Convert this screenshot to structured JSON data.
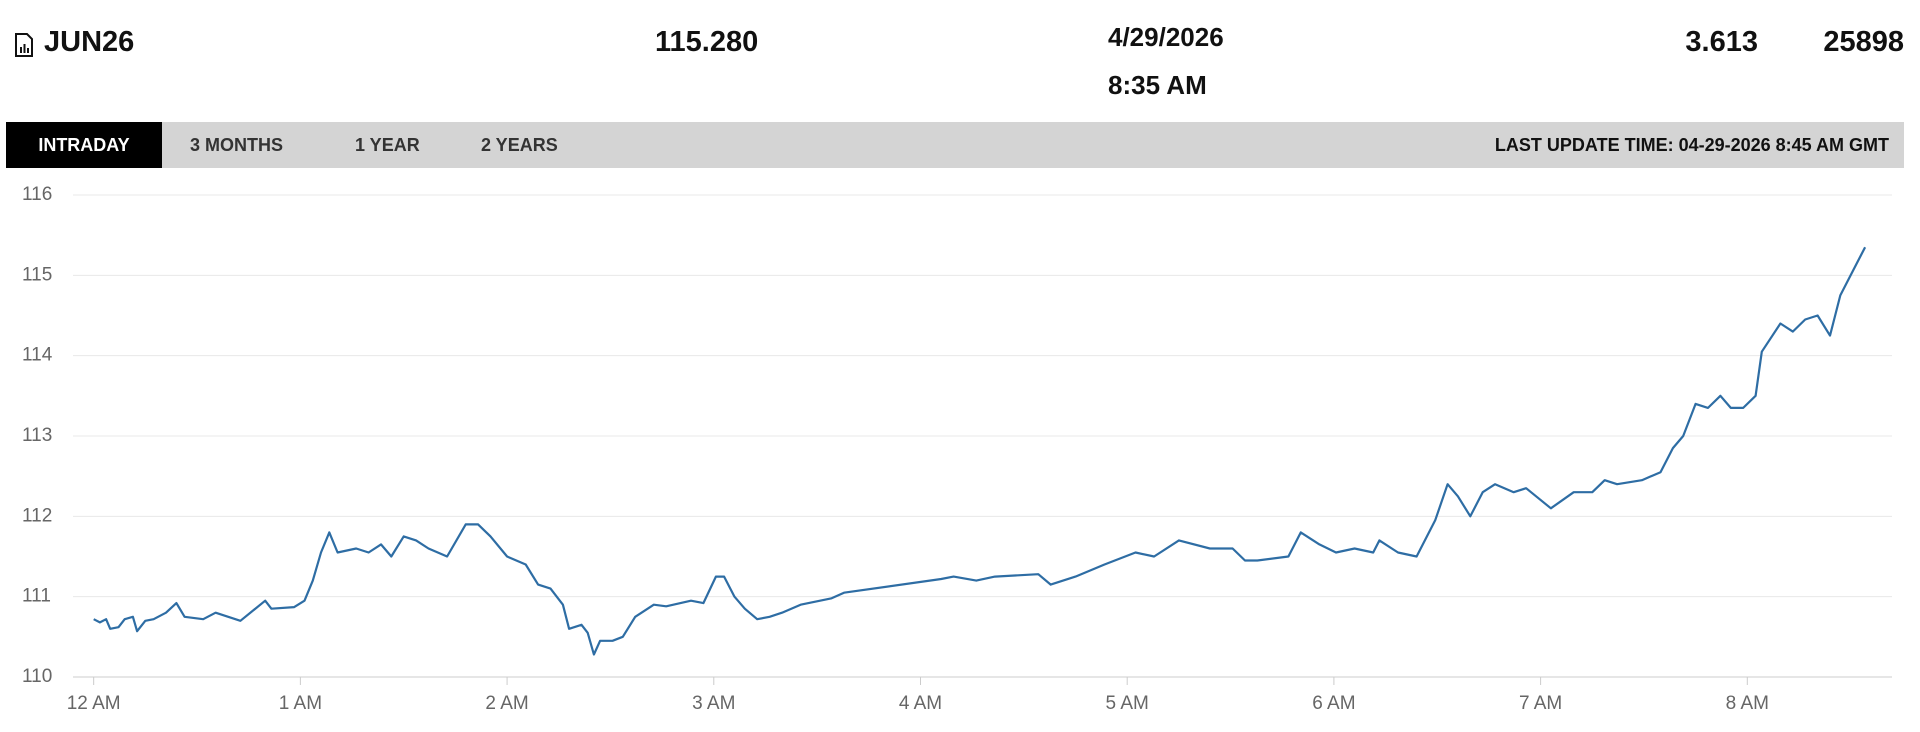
{
  "header": {
    "symbol": "JUN26",
    "last": "115.280",
    "date": "4/29/2026",
    "time": "8:35 AM",
    "change": "3.613",
    "volume": "25898"
  },
  "tabs": [
    "INTRADAY",
    "3 MONTHS",
    "1 YEAR",
    "2 YEARS"
  ],
  "last_update": "LAST UPDATE TIME: 04-29-2026 8:45 AM GMT",
  "chart_data": {
    "type": "line",
    "color": "#2e6da4",
    "grid": true,
    "xlim": [
      -0.1,
      8.7
    ],
    "ylim": [
      110,
      116
    ],
    "yticks": [
      110,
      111,
      112,
      113,
      114,
      115,
      116
    ],
    "xticks": [
      {
        "value": 0,
        "label": "12 AM"
      },
      {
        "value": 1,
        "label": "1 AM"
      },
      {
        "value": 2,
        "label": "2 AM"
      },
      {
        "value": 3,
        "label": "3 AM"
      },
      {
        "value": 4,
        "label": "4 AM"
      },
      {
        "value": 5,
        "label": "5 AM"
      },
      {
        "value": 6,
        "label": "6 AM"
      },
      {
        "value": 7,
        "label": "7 AM"
      },
      {
        "value": 8,
        "label": "8 AM"
      }
    ],
    "x": [
      0,
      0.03,
      0.06,
      0.08,
      0.12,
      0.15,
      0.19,
      0.21,
      0.25,
      0.29,
      0.35,
      0.4,
      0.44,
      0.53,
      0.59,
      0.71,
      0.83,
      0.86,
      0.97,
      1.02,
      1.06,
      1.1,
      1.14,
      1.18,
      1.27,
      1.33,
      1.39,
      1.44,
      1.5,
      1.56,
      1.62,
      1.71,
      1.8,
      1.86,
      1.92,
      2.0,
      2.09,
      2.15,
      2.21,
      2.27,
      2.3,
      2.36,
      2.39,
      2.42,
      2.45,
      2.51,
      2.56,
      2.62,
      2.71,
      2.77,
      2.89,
      2.95,
      3.01,
      3.05,
      3.1,
      3.15,
      3.21,
      3.27,
      3.33,
      3.42,
      3.57,
      3.63,
      4.1,
      4.16,
      4.27,
      4.36,
      4.57,
      4.63,
      4.75,
      4.89,
      5.04,
      5.13,
      5.25,
      5.4,
      5.51,
      5.57,
      5.63,
      5.78,
      5.84,
      5.93,
      6.01,
      6.1,
      6.19,
      6.22,
      6.31,
      6.4,
      6.49,
      6.55,
      6.6,
      6.66,
      6.72,
      6.78,
      6.87,
      6.93,
      7.05,
      7.16,
      7.25,
      7.31,
      7.37,
      7.49,
      7.58,
      7.64,
      7.69,
      7.75,
      7.81,
      7.87,
      7.92,
      7.98,
      8.04,
      8.07,
      8.16,
      8.22,
      8.28,
      8.34,
      8.4,
      8.45,
      8.51,
      8.57
    ],
    "values": [
      110.72,
      110.68,
      110.72,
      110.6,
      110.62,
      110.72,
      110.75,
      110.57,
      110.7,
      110.72,
      110.8,
      110.92,
      110.75,
      110.72,
      110.8,
      110.7,
      110.95,
      110.85,
      110.87,
      110.95,
      111.2,
      111.55,
      111.8,
      111.55,
      111.6,
      111.55,
      111.65,
      111.5,
      111.75,
      111.7,
      111.6,
      111.5,
      111.9,
      111.9,
      111.75,
      111.5,
      111.4,
      111.15,
      111.1,
      110.9,
      110.6,
      110.65,
      110.55,
      110.28,
      110.45,
      110.45,
      110.5,
      110.75,
      110.9,
      110.88,
      110.95,
      110.92,
      111.25,
      111.25,
      111.0,
      110.85,
      110.72,
      110.75,
      110.8,
      110.9,
      110.98,
      111.05,
      111.22,
      111.25,
      111.2,
      111.25,
      111.28,
      111.15,
      111.25,
      111.4,
      111.55,
      111.5,
      111.7,
      111.6,
      111.6,
      111.45,
      111.45,
      111.5,
      111.8,
      111.65,
      111.55,
      111.6,
      111.55,
      111.7,
      111.55,
      111.5,
      111.95,
      112.4,
      112.25,
      112.0,
      112.3,
      112.4,
      112.3,
      112.35,
      112.1,
      112.3,
      112.3,
      112.45,
      112.4,
      112.45,
      112.55,
      112.85,
      113.0,
      113.4,
      113.35,
      113.5,
      113.35,
      113.35,
      113.5,
      114.05,
      114.4,
      114.3,
      114.45,
      114.5,
      114.25,
      114.75,
      115.05,
      115.35
    ]
  }
}
